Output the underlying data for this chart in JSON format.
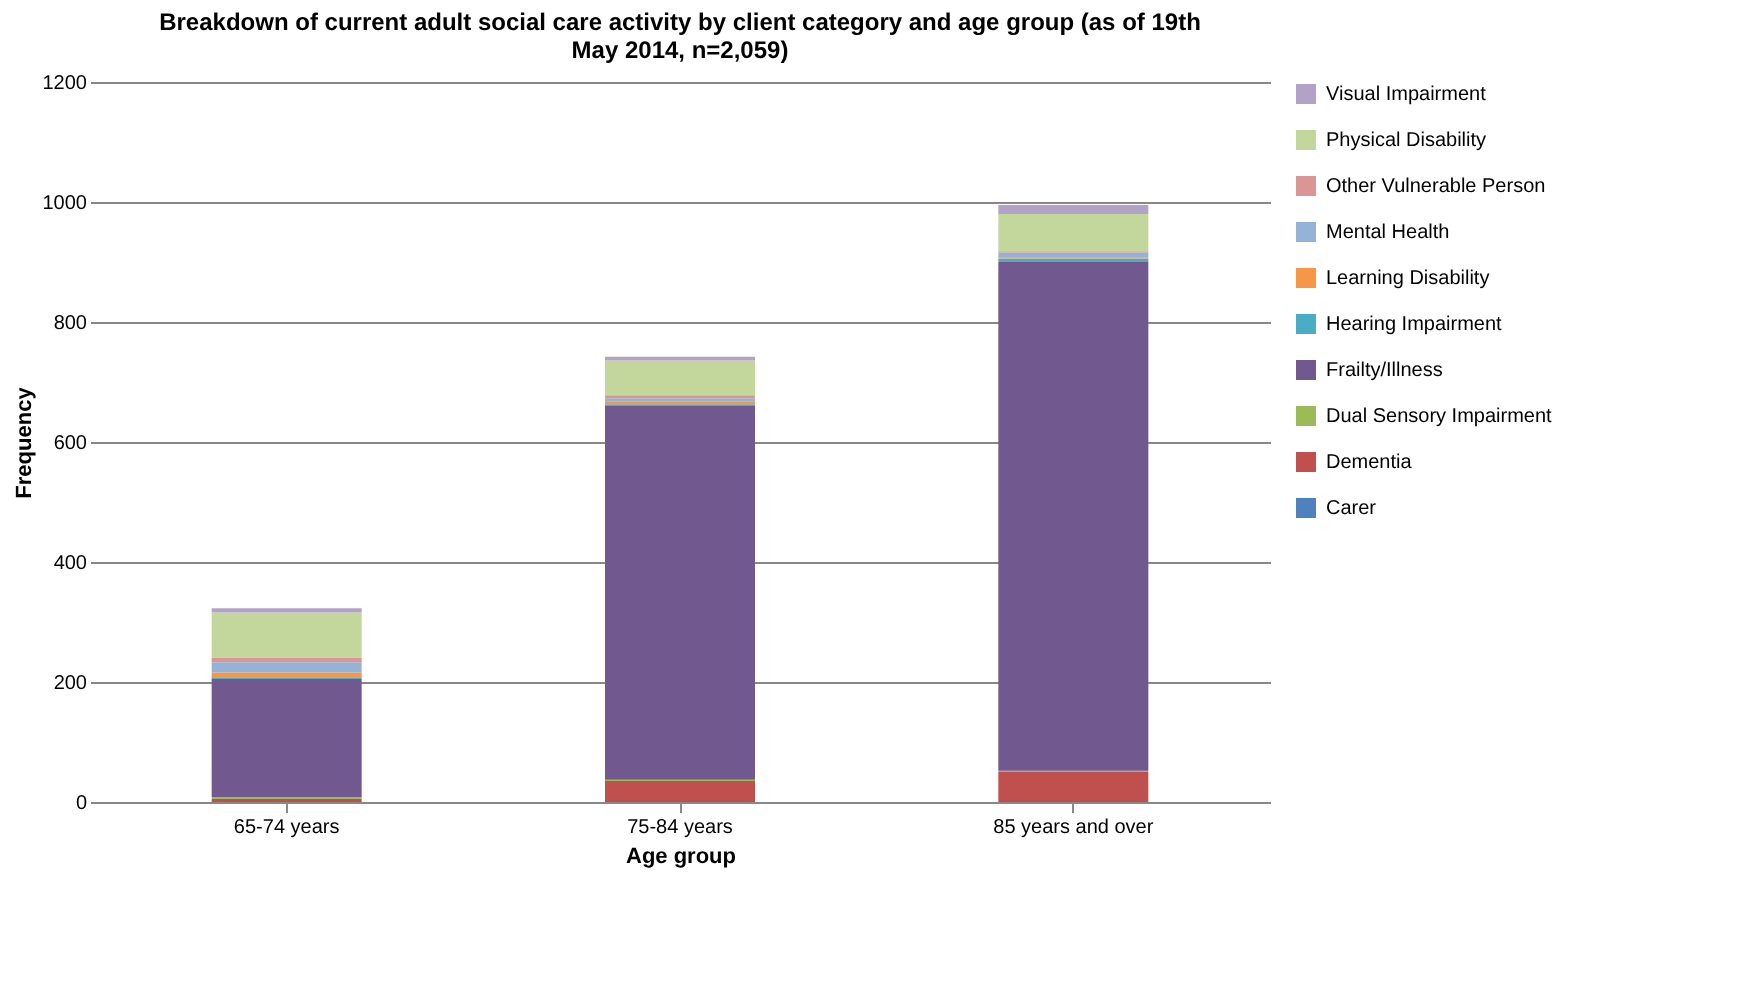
{
  "chart_data": {
    "type": "bar",
    "stacked": true,
    "title": "Breakdown of current adult social care activity by client category and age group (as of 19th May 2014, n=2,059)",
    "xlabel": "Age group",
    "ylabel": "Frequency",
    "categories": [
      "65-74 years",
      "75-84 years",
      "85 years and over"
    ],
    "ylim": [
      0,
      1200
    ],
    "yticks": [
      0,
      200,
      400,
      600,
      800,
      1000,
      1200
    ],
    "grid": "y",
    "legend": "right",
    "series": [
      {
        "name": "Carer",
        "color": "#4f81bd",
        "values": [
          null,
          null,
          null
        ]
      },
      {
        "name": "Dementia",
        "color": "#c0504d",
        "values": [
          5,
          35,
          50
        ]
      },
      {
        "name": "Dual Sensory Impairment",
        "color": "#9bbb59",
        "values": [
          3,
          2,
          2
        ]
      },
      {
        "name": "Frailty/Illness",
        "color": "#71588f",
        "values": [
          197,
          623,
          848
        ]
      },
      {
        "name": "Hearing Impairment",
        "color": "#4bacc6",
        "values": [
          3,
          3,
          6
        ]
      },
      {
        "name": "Learning Disability",
        "color": "#f79646",
        "values": [
          8,
          5,
          2
        ]
      },
      {
        "name": "Mental Health",
        "color": "#95b3d7",
        "values": [
          17,
          5,
          8
        ]
      },
      {
        "name": "Other Vulnerable Person",
        "color": "#d99694",
        "values": [
          8,
          5,
          2
        ]
      },
      {
        "name": "Physical Disability",
        "color": "#c3d69b",
        "values": [
          75,
          58,
          62
        ]
      },
      {
        "name": "Visual Impairment",
        "color": "#b3a2c7",
        "values": [
          7,
          6,
          15
        ]
      }
    ]
  }
}
